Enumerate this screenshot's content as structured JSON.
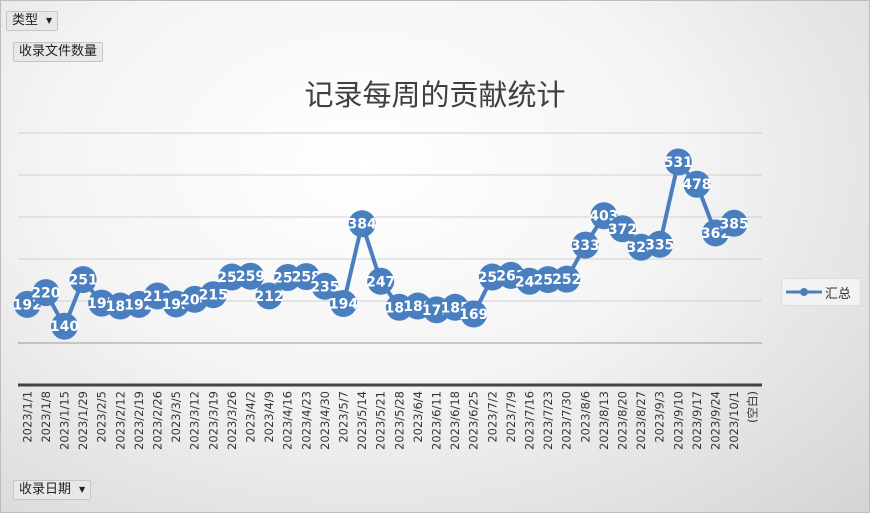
{
  "filters": {
    "type_label": "类型",
    "value_field": "收录文件数量",
    "axis_field": "收录日期"
  },
  "chart_data": {
    "type": "line",
    "title": "记录每周的贡献统计",
    "xlabel": "",
    "ylabel": "",
    "categories": [
      "2023/1/1",
      "2023/1/8",
      "2023/1/15",
      "2023/1/29",
      "2023/2/5",
      "2023/2/12",
      "2023/2/19",
      "2023/2/26",
      "2023/3/5",
      "2023/3/12",
      "2023/3/19",
      "2023/3/26",
      "2023/4/2",
      "2023/4/9",
      "2023/4/16",
      "2023/4/23",
      "2023/4/30",
      "2023/5/7",
      "2023/5/14",
      "2023/5/21",
      "2023/5/28",
      "2023/6/4",
      "2023/6/11",
      "2023/6/18",
      "2023/6/25",
      "2023/7/2",
      "2023/7/9",
      "2023/7/16",
      "2023/7/23",
      "2023/7/30",
      "2023/8/6",
      "2023/8/13",
      "2023/8/20",
      "2023/8/27",
      "2023/9/3",
      "2023/9/10",
      "2023/9/17",
      "2023/9/24",
      "2023/10/1",
      "(空白)"
    ],
    "series": [
      {
        "name": "汇总",
        "color": "#4a7fbf",
        "values": [
          192,
          220,
          140,
          251,
          195,
          188,
          192,
          212,
          193,
          204,
          215,
          257,
          259,
          212,
          256,
          258,
          235,
          194,
          384,
          247,
          185,
          188,
          179,
          185,
          169,
          257,
          261,
          247,
          251,
          252,
          333,
          403,
          372,
          328,
          335,
          531,
          478,
          362,
          385,
          null
        ]
      }
    ],
    "ylim": [
      0,
      600
    ],
    "grid": true,
    "legend": "right"
  }
}
